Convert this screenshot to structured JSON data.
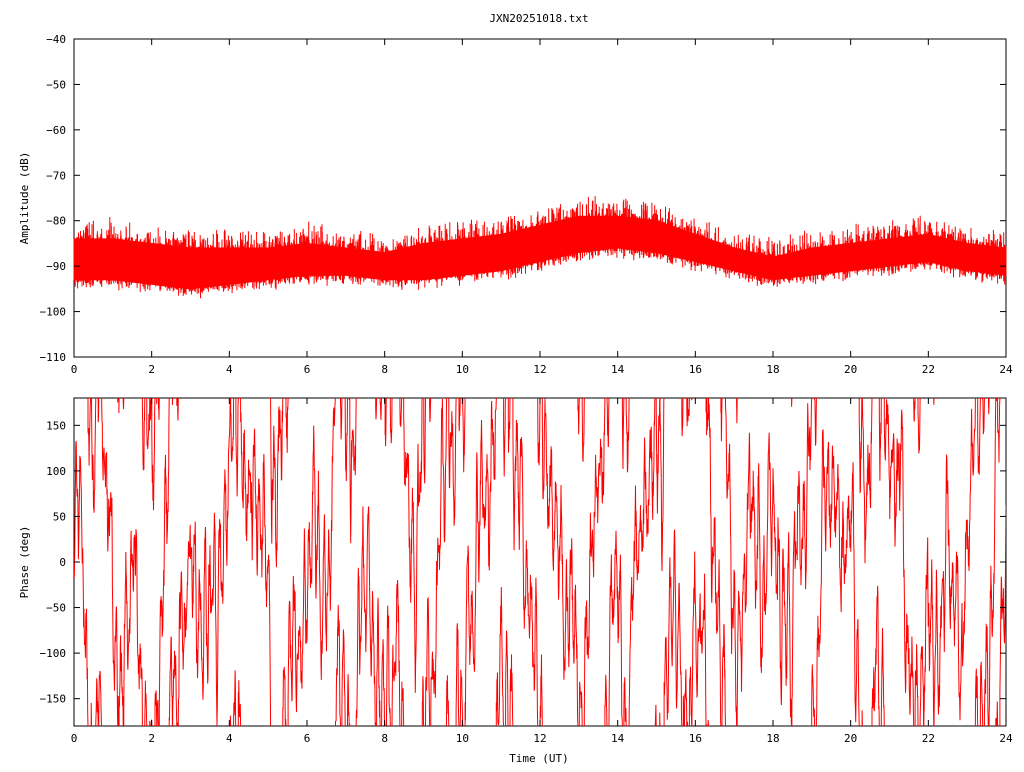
{
  "title": "JXN20251018.txt",
  "chart_data": [
    {
      "type": "line",
      "id": "amplitude",
      "xlabel": "",
      "ylabel": "Amplitude (dB)",
      "xlim": [
        0,
        24
      ],
      "ylim": [
        -110,
        -40
      ],
      "x_ticks": [
        0,
        2,
        4,
        6,
        8,
        10,
        12,
        14,
        16,
        18,
        20,
        22,
        24
      ],
      "y_ticks": [
        -110,
        -100,
        -90,
        -80,
        -70,
        -60,
        -50,
        -40
      ],
      "y_tick_labels": [
        "−110",
        "−100",
        "−90",
        "−80",
        "−70",
        "−60",
        "−50",
        "−40"
      ],
      "grid": false,
      "color": "#ff0000",
      "series": [
        {
          "style": "noisy-band",
          "x": [
            0,
            1,
            2,
            3,
            4,
            5,
            6,
            7,
            8,
            9,
            10,
            11,
            12,
            13,
            14,
            15,
            16,
            17,
            18,
            19,
            20,
            21,
            22,
            23,
            24
          ],
          "upper": [
            -84,
            -84,
            -85,
            -86,
            -86,
            -86,
            -85,
            -86,
            -87,
            -85,
            -84,
            -83,
            -81,
            -79,
            -79,
            -80,
            -83,
            -86,
            -88,
            -86,
            -85,
            -84,
            -83,
            -85,
            -86
          ],
          "lower": [
            -93,
            -93,
            -94,
            -95,
            -94,
            -93,
            -92,
            -92,
            -93,
            -93,
            -92,
            -91,
            -89,
            -87,
            -86,
            -87,
            -89,
            -91,
            -93,
            -92,
            -91,
            -90,
            -89,
            -91,
            -92
          ]
        }
      ]
    },
    {
      "type": "line",
      "id": "phase",
      "xlabel": "Time (UT)",
      "ylabel": "Phase (deg)",
      "xlim": [
        0,
        24
      ],
      "ylim": [
        -180,
        180
      ],
      "x_ticks": [
        0,
        2,
        4,
        6,
        8,
        10,
        12,
        14,
        16,
        18,
        20,
        22,
        24
      ],
      "y_ticks": [
        -150,
        -100,
        -50,
        0,
        50,
        100,
        150
      ],
      "y_tick_labels": [
        "−150",
        "−100",
        "−50",
        "0",
        "50",
        "100",
        "150"
      ],
      "grid": false,
      "color": "#ff0000",
      "series": [
        {
          "style": "wrapped-phase",
          "range": [
            -180,
            180
          ]
        }
      ]
    }
  ]
}
